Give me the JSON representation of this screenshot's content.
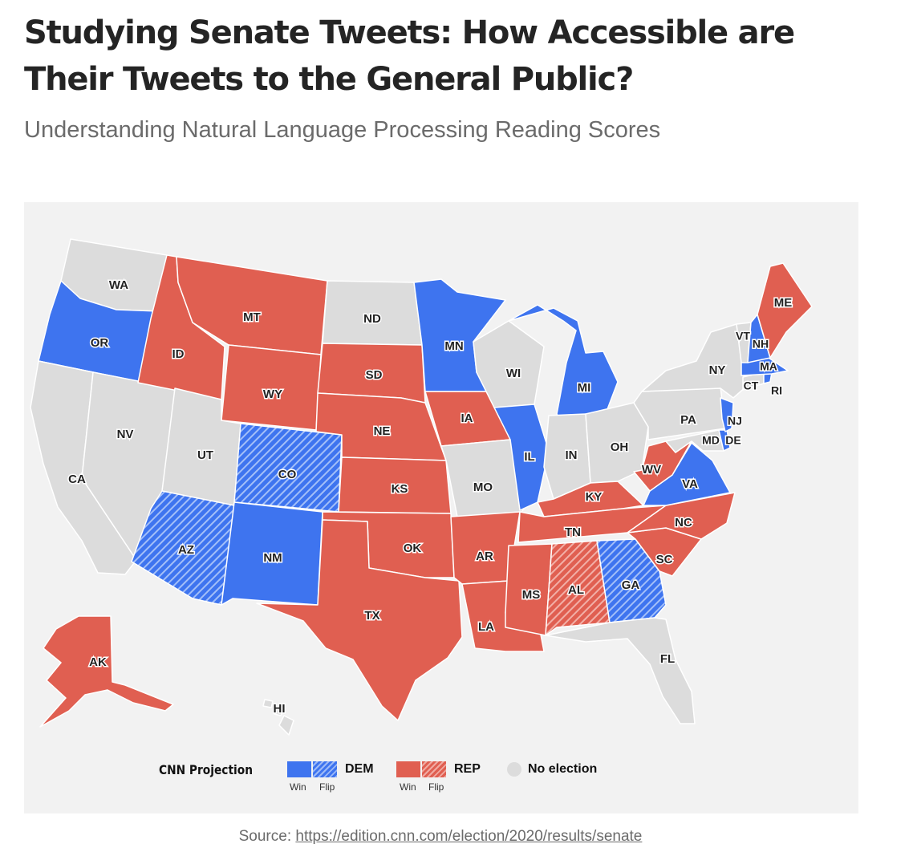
{
  "article": {
    "title": "Studying Senate Tweets: How Accessible are Their Tweets to the General Public?",
    "subtitle": "Understanding Natural Language Processing Reading Scores",
    "source_prefix": "Source: ",
    "source_link": "https://edition.cnn.com/election/2020/results/senate"
  },
  "map": {
    "colors": {
      "dem": "#3e74ef",
      "rep": "#e05f51",
      "none": "#dcdcdc",
      "background": "#f2f2f2"
    },
    "legend": {
      "title": "CNN Projection",
      "dem_label": "DEM",
      "rep_label": "REP",
      "none_label": "No election",
      "win_label": "Win",
      "flip_label": "Flip"
    },
    "states": [
      {
        "code": "WA",
        "result": "none"
      },
      {
        "code": "OR",
        "result": "dem"
      },
      {
        "code": "CA",
        "result": "none"
      },
      {
        "code": "NV",
        "result": "none"
      },
      {
        "code": "ID",
        "result": "rep"
      },
      {
        "code": "MT",
        "result": "rep"
      },
      {
        "code": "WY",
        "result": "rep"
      },
      {
        "code": "UT",
        "result": "none"
      },
      {
        "code": "AZ",
        "result": "dem-flip"
      },
      {
        "code": "CO",
        "result": "dem-flip"
      },
      {
        "code": "NM",
        "result": "dem"
      },
      {
        "code": "ND",
        "result": "none"
      },
      {
        "code": "SD",
        "result": "rep"
      },
      {
        "code": "NE",
        "result": "rep"
      },
      {
        "code": "KS",
        "result": "rep"
      },
      {
        "code": "OK",
        "result": "rep"
      },
      {
        "code": "TX",
        "result": "rep"
      },
      {
        "code": "MN",
        "result": "dem"
      },
      {
        "code": "IA",
        "result": "rep"
      },
      {
        "code": "MO",
        "result": "none"
      },
      {
        "code": "AR",
        "result": "rep"
      },
      {
        "code": "LA",
        "result": "rep"
      },
      {
        "code": "WI",
        "result": "none"
      },
      {
        "code": "IL",
        "result": "dem"
      },
      {
        "code": "MI",
        "result": "dem"
      },
      {
        "code": "IN",
        "result": "none"
      },
      {
        "code": "OH",
        "result": "none"
      },
      {
        "code": "KY",
        "result": "rep"
      },
      {
        "code": "TN",
        "result": "rep"
      },
      {
        "code": "MS",
        "result": "rep"
      },
      {
        "code": "AL",
        "result": "rep-flip"
      },
      {
        "code": "GA",
        "result": "dem-flip"
      },
      {
        "code": "FL",
        "result": "none"
      },
      {
        "code": "SC",
        "result": "rep"
      },
      {
        "code": "NC",
        "result": "rep"
      },
      {
        "code": "VA",
        "result": "dem"
      },
      {
        "code": "WV",
        "result": "rep"
      },
      {
        "code": "PA",
        "result": "none"
      },
      {
        "code": "NY",
        "result": "none"
      },
      {
        "code": "VT",
        "result": "none"
      },
      {
        "code": "NH",
        "result": "dem"
      },
      {
        "code": "ME",
        "result": "rep"
      },
      {
        "code": "MA",
        "result": "dem"
      },
      {
        "code": "RI",
        "result": "dem"
      },
      {
        "code": "CT",
        "result": "none"
      },
      {
        "code": "NJ",
        "result": "dem"
      },
      {
        "code": "DE",
        "result": "dem"
      },
      {
        "code": "MD",
        "result": "none"
      },
      {
        "code": "AK",
        "result": "rep"
      },
      {
        "code": "HI",
        "result": "none"
      }
    ]
  }
}
